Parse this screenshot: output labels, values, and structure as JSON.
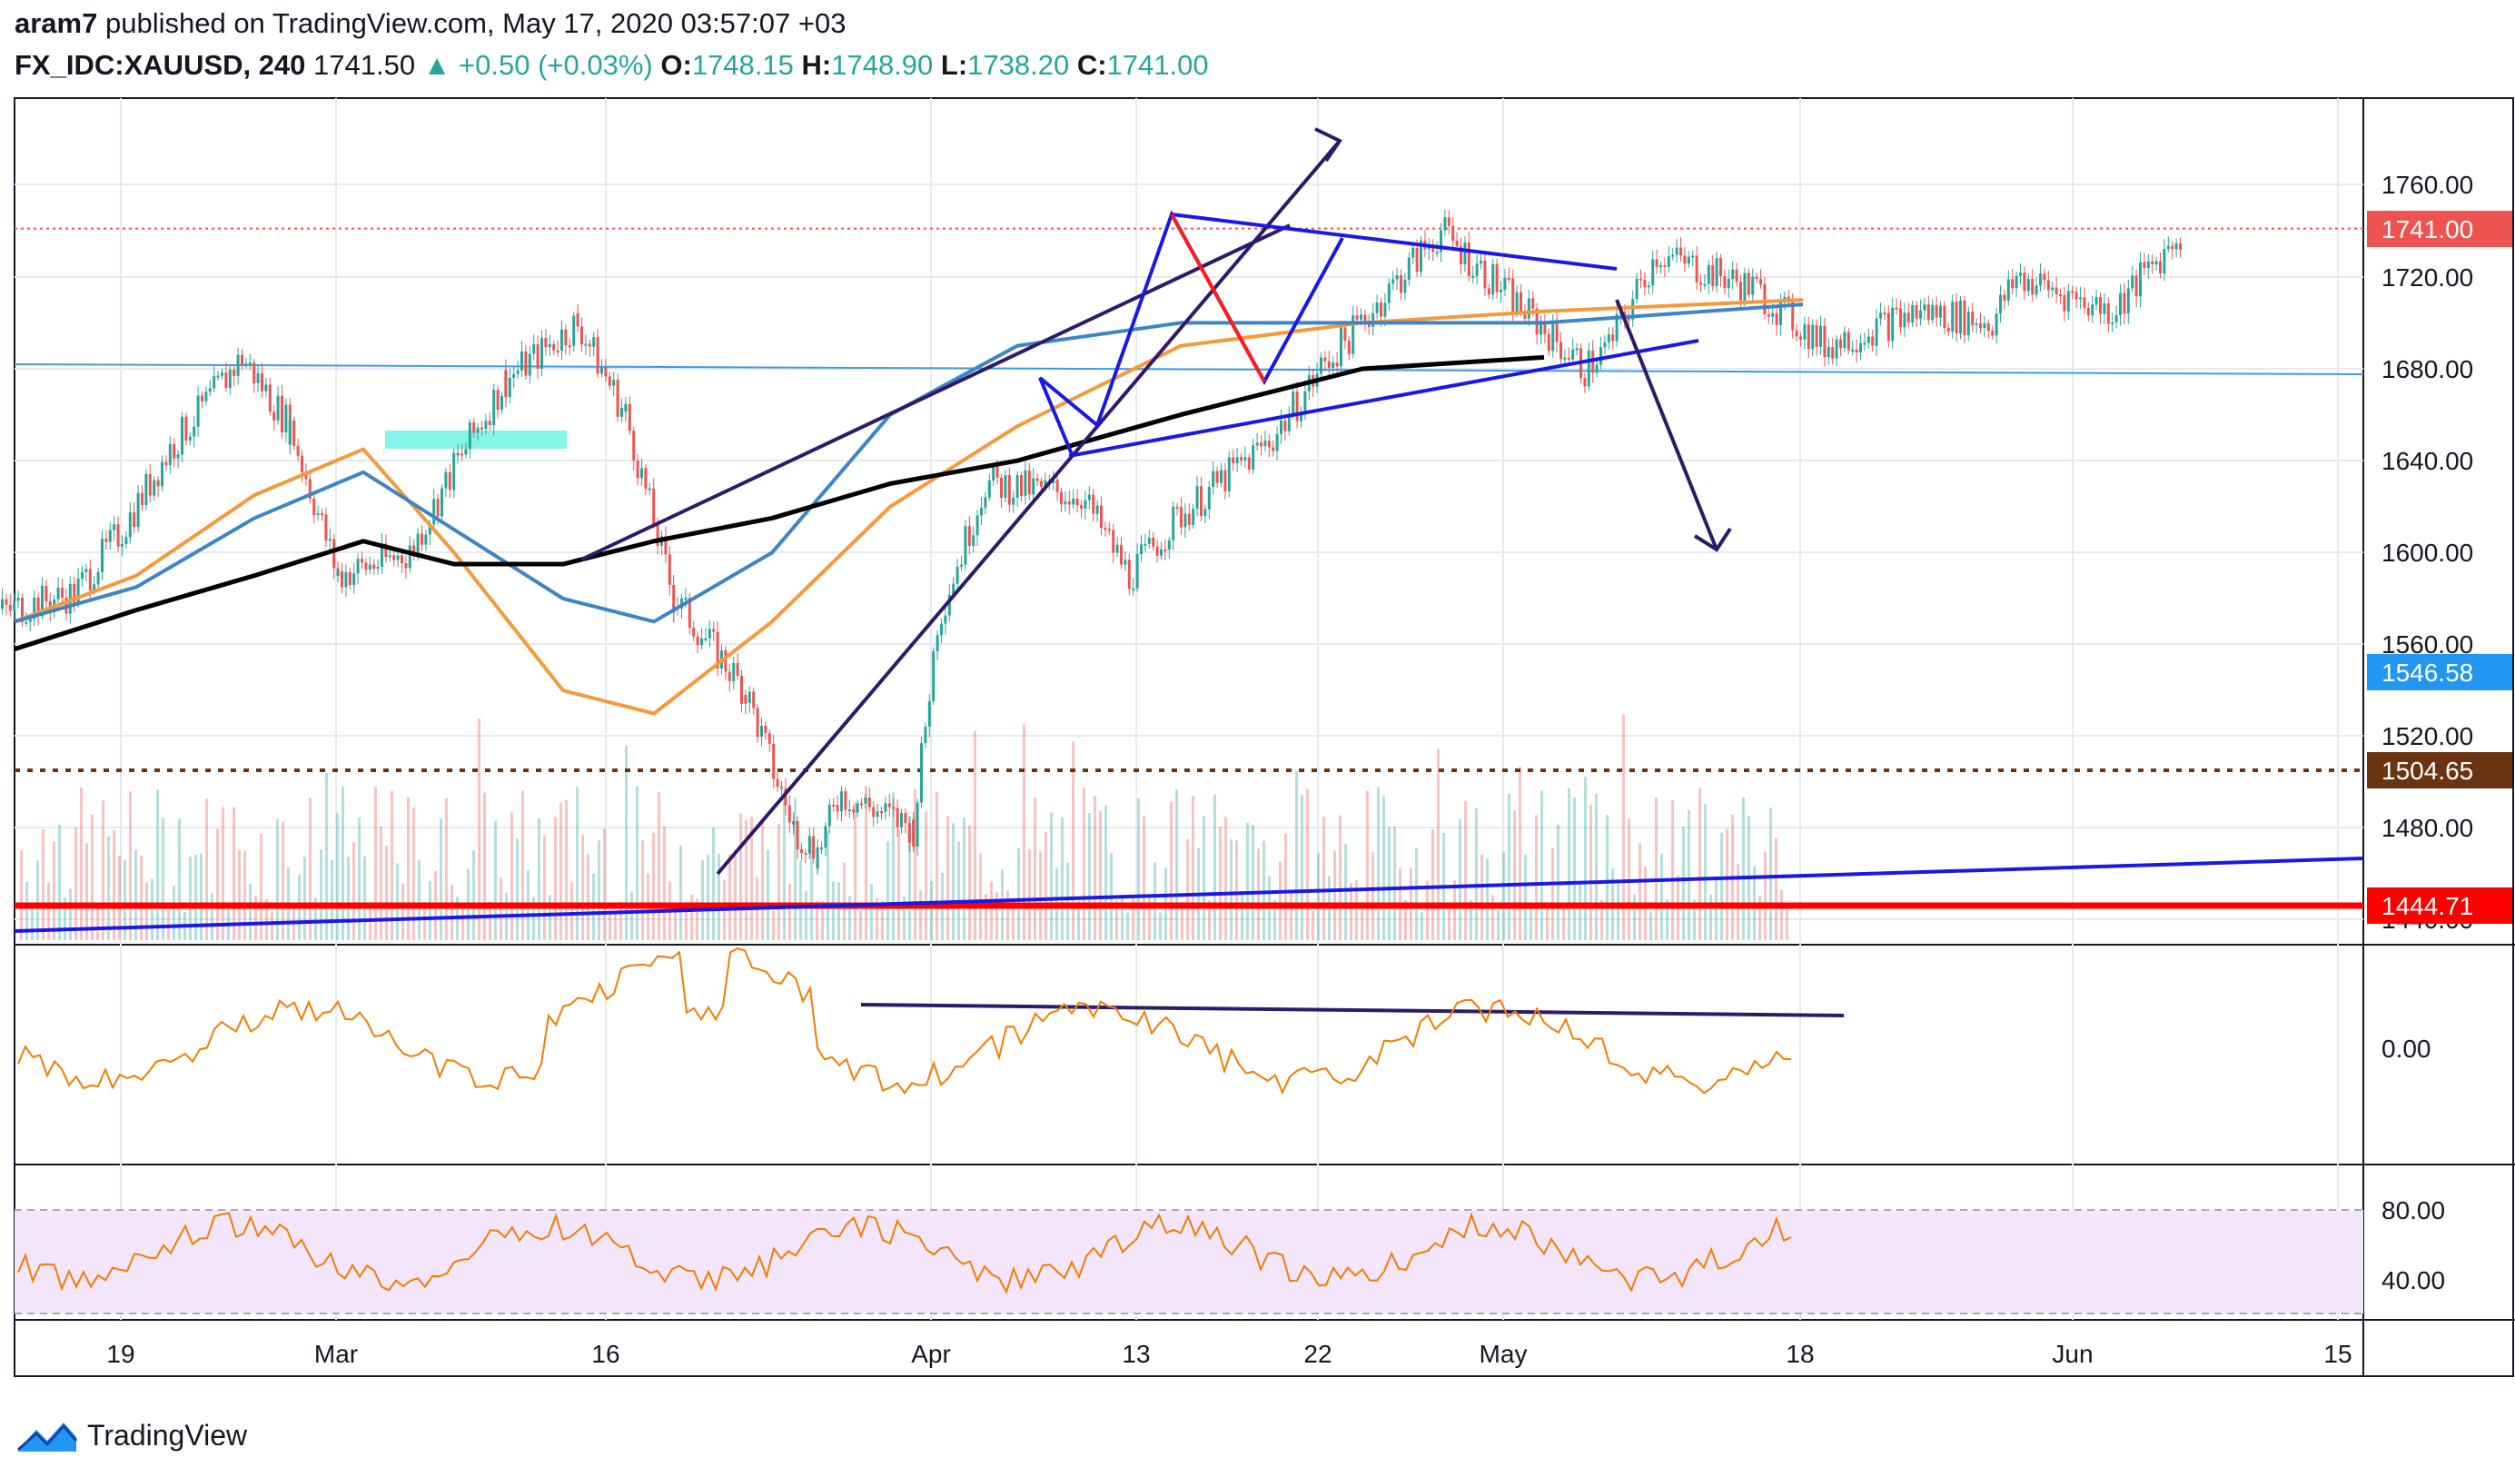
{
  "header": {
    "author": "aram7",
    "published_text": "published on TradingView.com, May 17, 2020 03:57:07 +03",
    "symbol": "FX_IDC:XAUUSD, 240",
    "last": "1741.50",
    "change": "+0.50 (+0.03%)",
    "open_label": "O:",
    "open": "1748.15",
    "high_label": "H:",
    "high": "1748.90",
    "low_label": "L:",
    "low": "1738.20",
    "close_label": "C:",
    "close": "1741.00"
  },
  "brand": {
    "name": "TradingView",
    "logo_icon": "tradingview-logo-icon"
  },
  "colors": {
    "up": "#26a69a",
    "down": "#ef5350",
    "ma_fast": "#f59a3c",
    "ma_mid": "#3d85c6",
    "ma_slow": "#000000",
    "drawing_navy": "#2e1a6b",
    "drawing_blue": "#1919e6",
    "drawing_red": "#ff1a1a",
    "indicator": "#f57c00",
    "rsi_band": "#f3e5fb",
    "level_red": "#ff0000",
    "level_brown": "#6b3410",
    "level_light_blue": "#3d9be9",
    "highlight": "#66f2e6"
  },
  "chart_data": [
    {
      "type": "candlestick",
      "symbol": "FX_IDC:XAUUSD",
      "interval": "240",
      "x_tick_labels": [
        "19",
        "Mar",
        "16",
        "Apr",
        "13",
        "22",
        "May",
        "18",
        "Jun",
        "15"
      ],
      "y_tick_labels": [
        "1760.00",
        "1720.00",
        "1680.00",
        "1640.00",
        "1600.00",
        "1560.00",
        "1520.00",
        "1480.00",
        "1440.00"
      ],
      "ylim": [
        1430,
        1784
      ],
      "price_labels": [
        {
          "value": "1741.00",
          "color": "#ef5350"
        },
        {
          "value": "1546.58",
          "color": "#2196f3"
        },
        {
          "value": "1504.65",
          "color": "#6b3410"
        },
        {
          "value": "1444.71",
          "color": "#ff0000"
        }
      ],
      "close_path": [
        [
          "2020-02-13",
          1572
        ],
        [
          "2020-02-17",
          1582
        ],
        [
          "2020-02-19",
          1610
        ],
        [
          "2020-02-21",
          1645
        ],
        [
          "2020-02-24",
          1685
        ],
        [
          "2020-02-26",
          1655
        ],
        [
          "2020-02-28",
          1590
        ],
        [
          "2020-03-02",
          1600
        ],
        [
          "2020-03-04",
          1640
        ],
        [
          "2020-03-06",
          1675
        ],
        [
          "2020-03-09",
          1700
        ],
        [
          "2020-03-11",
          1660
        ],
        [
          "2020-03-13",
          1580
        ],
        [
          "2020-03-16",
          1540
        ],
        [
          "2020-03-18",
          1480
        ],
        [
          "2020-03-19",
          1470
        ],
        [
          "2020-03-20",
          1495
        ],
        [
          "2020-03-23",
          1480
        ],
        [
          "2020-03-24",
          1570
        ],
        [
          "2020-03-26",
          1630
        ],
        [
          "2020-03-30",
          1625
        ],
        [
          "2020-04-01",
          1590
        ],
        [
          "2020-04-03",
          1615
        ],
        [
          "2020-04-07",
          1650
        ],
        [
          "2020-04-09",
          1680
        ],
        [
          "2020-04-14",
          1740
        ],
        [
          "2020-04-16",
          1720
        ],
        [
          "2020-04-20",
          1680
        ],
        [
          "2020-04-21",
          1690
        ],
        [
          "2020-04-23",
          1730
        ],
        [
          "2020-04-27",
          1715
        ],
        [
          "2020-04-30",
          1690
        ],
        [
          "2020-05-04",
          1705
        ],
        [
          "2020-05-07",
          1700
        ],
        [
          "2020-05-08",
          1720
        ],
        [
          "2020-05-12",
          1705
        ],
        [
          "2020-05-15",
          1741
        ]
      ],
      "moving_averages": [
        {
          "color": "#f59a3c",
          "values": [
            1570,
            1590,
            1625,
            1645,
            1600,
            1540,
            1530,
            1570,
            1620,
            1655,
            1690,
            1700,
            1705,
            1710
          ]
        },
        {
          "color": "#3d85c6",
          "values": [
            1570,
            1585,
            1615,
            1635,
            1610,
            1580,
            1570,
            1600,
            1660,
            1690,
            1700,
            1700,
            1700,
            1708
          ]
        },
        {
          "color": "#000000",
          "values": [
            1558,
            1575,
            1590,
            1605,
            1595,
            1595,
            1605,
            1615,
            1630,
            1640,
            1660,
            1680,
            1685
          ]
        }
      ],
      "horizontal_levels": [
        1741.0,
        1681,
        1504.65,
        1444.71
      ]
    },
    {
      "type": "line",
      "name": "oscillator",
      "y_tick_labels": [
        "0.00"
      ]
    },
    {
      "type": "line",
      "name": "rsi",
      "y_tick_labels": [
        "80.00",
        "40.00"
      ]
    }
  ]
}
